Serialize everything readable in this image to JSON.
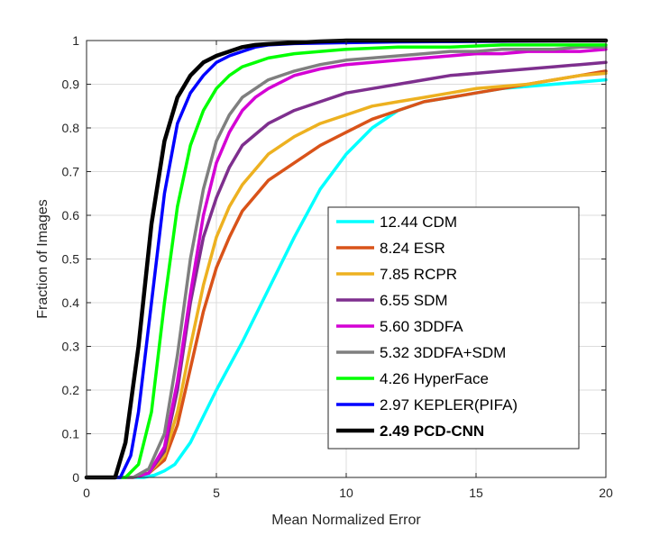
{
  "chart_data": {
    "type": "line",
    "title": "",
    "xlabel": "Mean Normalized Error",
    "ylabel": "Fraction of Images",
    "xlim": [
      0,
      20
    ],
    "ylim": [
      0,
      1
    ],
    "xticks": [
      0,
      5,
      10,
      15,
      20
    ],
    "yticks": [
      0,
      0.1,
      0.2,
      0.3,
      0.4,
      0.5,
      0.6,
      0.7,
      0.8,
      0.9,
      1
    ],
    "grid": true,
    "legend_position": "bottom-right",
    "series": [
      {
        "name": "12.44 CDM",
        "color": "#00FFFF",
        "bold": false,
        "x": [
          0,
          2.2,
          2.6,
          3.0,
          3.4,
          4.0,
          5.0,
          6.0,
          7.0,
          8.0,
          9.0,
          10.0,
          11.0,
          12.0,
          13.0,
          14.0,
          15.0,
          16.0,
          17.0,
          18.0,
          19.0,
          20.0
        ],
        "y": [
          0,
          0,
          0.005,
          0.015,
          0.03,
          0.08,
          0.2,
          0.31,
          0.43,
          0.55,
          0.66,
          0.74,
          0.8,
          0.84,
          0.86,
          0.87,
          0.88,
          0.89,
          0.895,
          0.9,
          0.905,
          0.91
        ]
      },
      {
        "name": "8.24 ESR",
        "color": "#D95319",
        "bold": false,
        "x": [
          0,
          1.8,
          2.4,
          3.0,
          3.5,
          4.0,
          4.5,
          5.0,
          5.5,
          6.0,
          7.0,
          8.0,
          9.0,
          10.0,
          11.0,
          12.0,
          13.0,
          14.0,
          15.0,
          16.0,
          17.0,
          18.0,
          19.0,
          20.0
        ],
        "y": [
          0,
          0,
          0.01,
          0.04,
          0.12,
          0.25,
          0.38,
          0.48,
          0.55,
          0.61,
          0.68,
          0.72,
          0.76,
          0.79,
          0.82,
          0.84,
          0.86,
          0.87,
          0.88,
          0.89,
          0.9,
          0.91,
          0.92,
          0.93
        ]
      },
      {
        "name": "7.85 RCPR",
        "color": "#EDB120",
        "bold": false,
        "x": [
          0,
          1.8,
          2.4,
          3.0,
          3.5,
          4.0,
          4.5,
          5.0,
          5.5,
          6.0,
          7.0,
          8.0,
          9.0,
          10.0,
          11.0,
          12.0,
          13.0,
          14.0,
          15.0,
          16.0,
          17.0,
          18.0,
          19.0,
          20.0
        ],
        "y": [
          0,
          0,
          0.01,
          0.05,
          0.15,
          0.3,
          0.44,
          0.55,
          0.62,
          0.67,
          0.74,
          0.78,
          0.81,
          0.83,
          0.85,
          0.86,
          0.87,
          0.88,
          0.89,
          0.895,
          0.9,
          0.91,
          0.92,
          0.925
        ]
      },
      {
        "name": "6.55 SDM",
        "color": "#7E2F8E",
        "bold": false,
        "x": [
          0,
          1.8,
          2.4,
          3.0,
          3.5,
          4.0,
          4.5,
          5.0,
          5.5,
          6.0,
          7.0,
          8.0,
          9.0,
          10.0,
          11.0,
          12.0,
          13.0,
          14.0,
          15.0,
          16.0,
          17.0,
          18.0,
          19.0,
          20.0
        ],
        "y": [
          0,
          0,
          0.01,
          0.06,
          0.2,
          0.4,
          0.55,
          0.64,
          0.71,
          0.76,
          0.81,
          0.84,
          0.86,
          0.88,
          0.89,
          0.9,
          0.91,
          0.92,
          0.925,
          0.93,
          0.935,
          0.94,
          0.945,
          0.95
        ]
      },
      {
        "name": "5.60 3DDFA",
        "color": "#D400D4",
        "bold": false,
        "x": [
          0,
          1.8,
          2.4,
          3.0,
          3.5,
          4.0,
          4.5,
          5.0,
          5.5,
          6.0,
          6.5,
          7.0,
          8.0,
          9.0,
          10.0,
          11.0,
          12.0,
          13.0,
          14.0,
          15.0,
          16.0,
          17.0,
          18.0,
          19.0,
          20.0
        ],
        "y": [
          0,
          0,
          0.01,
          0.07,
          0.22,
          0.42,
          0.6,
          0.72,
          0.79,
          0.84,
          0.87,
          0.89,
          0.92,
          0.935,
          0.945,
          0.95,
          0.955,
          0.96,
          0.965,
          0.97,
          0.97,
          0.975,
          0.975,
          0.975,
          0.98
        ]
      },
      {
        "name": "5.32 3DDFA+SDM",
        "color": "#7F7F7F",
        "bold": false,
        "x": [
          0,
          1.8,
          2.4,
          3.0,
          3.5,
          4.0,
          4.5,
          5.0,
          5.5,
          6.0,
          6.5,
          7.0,
          8.0,
          9.0,
          10.0,
          11.0,
          12.0,
          13.0,
          14.0,
          15.0,
          16.0,
          17.0,
          18.0,
          19.0,
          20.0
        ],
        "y": [
          0,
          0,
          0.02,
          0.1,
          0.28,
          0.5,
          0.66,
          0.77,
          0.83,
          0.87,
          0.89,
          0.91,
          0.93,
          0.945,
          0.955,
          0.96,
          0.965,
          0.97,
          0.975,
          0.975,
          0.98,
          0.98,
          0.98,
          0.985,
          0.985
        ]
      },
      {
        "name": "4.26 HyperFace",
        "color": "#00FF00",
        "bold": false,
        "x": [
          0,
          1.5,
          2.0,
          2.5,
          3.0,
          3.5,
          4.0,
          4.5,
          5.0,
          5.5,
          6.0,
          6.5,
          7.0,
          8.0,
          9.0,
          10.0,
          12.0,
          14.0,
          16.0,
          18.0,
          20.0
        ],
        "y": [
          0,
          0,
          0.03,
          0.15,
          0.4,
          0.62,
          0.76,
          0.84,
          0.89,
          0.92,
          0.94,
          0.95,
          0.96,
          0.97,
          0.975,
          0.98,
          0.985,
          0.985,
          0.99,
          0.99,
          0.99
        ]
      },
      {
        "name": "2.97 KEPLER(PIFA)",
        "color": "#0000FF",
        "bold": false,
        "x": [
          0,
          1.3,
          1.7,
          2.0,
          2.5,
          3.0,
          3.5,
          4.0,
          4.5,
          5.0,
          5.5,
          6.0,
          6.5,
          7.0,
          8.0,
          10.0,
          12.0,
          15.0,
          20.0
        ],
        "y": [
          0,
          0,
          0.05,
          0.15,
          0.4,
          0.65,
          0.81,
          0.88,
          0.92,
          0.95,
          0.965,
          0.975,
          0.985,
          0.99,
          0.993,
          0.995,
          0.997,
          0.998,
          1.0
        ]
      },
      {
        "name": "2.49 PCD-CNN",
        "color": "#000000",
        "bold": true,
        "x": [
          0,
          1.1,
          1.5,
          2.0,
          2.5,
          3.0,
          3.5,
          4.0,
          4.5,
          5.0,
          5.5,
          6.0,
          6.5,
          7.0,
          8.0,
          9.0,
          10.0,
          15.0,
          20.0
        ],
        "y": [
          0,
          0,
          0.08,
          0.3,
          0.58,
          0.77,
          0.87,
          0.92,
          0.95,
          0.965,
          0.975,
          0.985,
          0.99,
          0.992,
          0.995,
          0.998,
          1.0,
          1.0,
          1.0
        ]
      }
    ]
  }
}
